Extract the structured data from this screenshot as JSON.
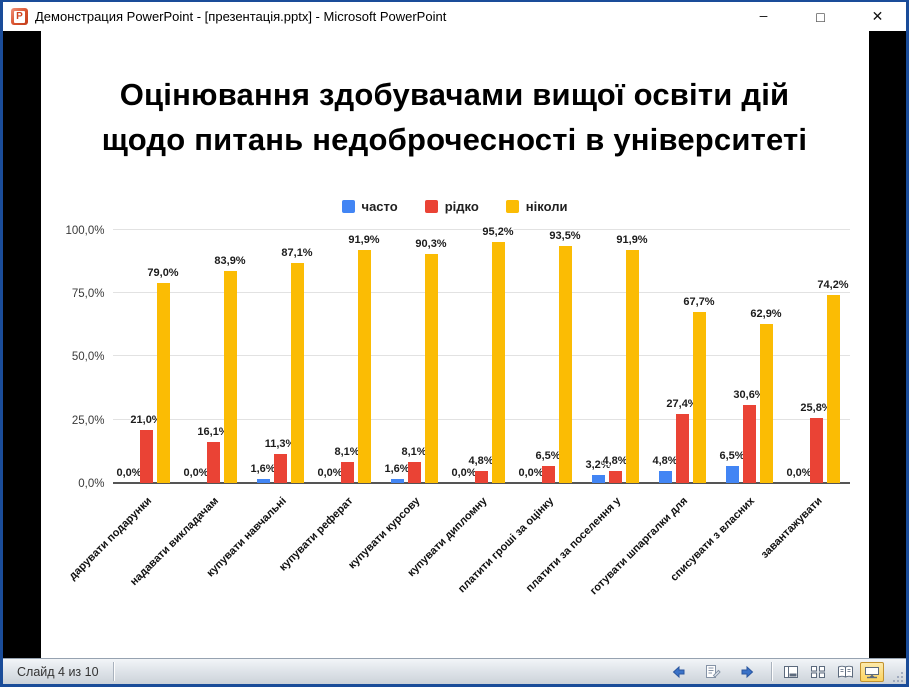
{
  "window": {
    "title": "Демонстрация PowerPoint - [презентація.pptx] - Microsoft PowerPoint",
    "app_icon": "powerpoint-icon",
    "app_icon_letter": "P",
    "controls": {
      "minimize": "–",
      "maximize": "□",
      "close": "✕"
    }
  },
  "slide": {
    "title_line1": "Оцінювання здобувачами вищої освіти дій",
    "title_line2": "щодо питань недоброчесності в університеті"
  },
  "chart_data": {
    "type": "bar",
    "title": "",
    "xlabel": "",
    "ylabel": "",
    "ylim": [
      0,
      100
    ],
    "grid": true,
    "legend_position": "top",
    "value_label_format": "0,0%",
    "y_ticks": [
      "0,0%",
      "25,0%",
      "50,0%",
      "75,0%",
      "100,0%"
    ],
    "y_tick_values": [
      0,
      25,
      50,
      75,
      100
    ],
    "categories": [
      "дарувати подарунки",
      "надавати викладачам",
      "купувати навчальні",
      "купувати реферат",
      "купувати курсову",
      "купувати дипломну",
      "платити гроші за оцінку",
      "платити за поселення у",
      "готувати шпаргалки для",
      "списувати з власних",
      "завантажувати"
    ],
    "series": [
      {
        "name": "часто",
        "color": "#4285F4",
        "values": [
          0.0,
          0.0,
          1.6,
          0.0,
          1.6,
          0.0,
          0.0,
          3.2,
          4.8,
          6.5,
          0.0
        ]
      },
      {
        "name": "рідко",
        "color": "#EA4335",
        "values": [
          21.0,
          16.1,
          11.3,
          8.1,
          8.1,
          4.8,
          6.5,
          4.8,
          27.4,
          30.6,
          25.8
        ]
      },
      {
        "name": "ніколи",
        "color": "#FBBC04",
        "values": [
          79.0,
          83.9,
          87.1,
          91.9,
          90.3,
          95.2,
          93.5,
          91.9,
          67.7,
          62.9,
          74.2
        ]
      }
    ]
  },
  "statusbar": {
    "slide_indicator": "Слайд 4 из 10",
    "nav_icons": [
      "previous-slide-arrow-icon",
      "annotation-menu-icon",
      "next-slide-arrow-icon"
    ],
    "view_buttons": [
      {
        "icon": "normal-view-icon",
        "active": false
      },
      {
        "icon": "slide-sorter-icon",
        "active": false
      },
      {
        "icon": "reading-view-icon",
        "active": false
      },
      {
        "icon": "slideshow-icon",
        "active": true
      }
    ]
  },
  "colors": {
    "window_border": "#1a4c99",
    "titlebar_bg": "#ffffff",
    "stage_bg": "#000000",
    "slide_bg": "#ffffff",
    "active_view_border": "#c2922e",
    "nav_arrow": "#3a72c8"
  }
}
